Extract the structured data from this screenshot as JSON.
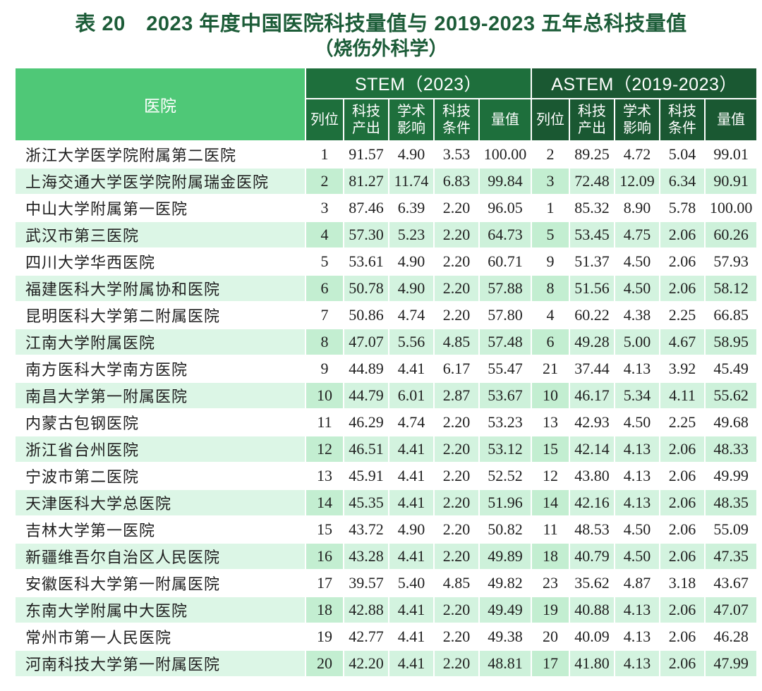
{
  "chart_data": {
    "type": "table",
    "title": "表 20　2023 年度中国医院科技量值与 2019-2023 五年总科技量值",
    "subtitle": "（烧伤外科学）",
    "hospital_header": "医院",
    "column_groups": [
      {
        "label": "STEM（2023）",
        "columns": [
          "列位",
          "科技\n产出",
          "学术\n影响",
          "科技\n条件",
          "量值"
        ]
      },
      {
        "label": "ASTEM（2019-2023）",
        "columns": [
          "列位",
          "科技\n产出",
          "学术\n影响",
          "科技\n条件",
          "量值"
        ]
      }
    ],
    "rows": [
      {
        "hospital": "浙江大学医学院附属第二医院",
        "stem": [
          "1",
          "91.57",
          "4.90",
          "3.53",
          "100.00"
        ],
        "astem": [
          "2",
          "89.25",
          "4.72",
          "5.04",
          "99.01"
        ]
      },
      {
        "hospital": "上海交通大学医学院附属瑞金医院",
        "stem": [
          "2",
          "81.27",
          "11.74",
          "6.83",
          "99.84"
        ],
        "astem": [
          "3",
          "72.48",
          "12.09",
          "6.34",
          "90.91"
        ]
      },
      {
        "hospital": "中山大学附属第一医院",
        "stem": [
          "3",
          "87.46",
          "6.39",
          "2.20",
          "96.05"
        ],
        "astem": [
          "1",
          "85.32",
          "8.90",
          "5.78",
          "100.00"
        ]
      },
      {
        "hospital": "武汉市第三医院",
        "stem": [
          "4",
          "57.30",
          "5.23",
          "2.20",
          "64.73"
        ],
        "astem": [
          "5",
          "53.45",
          "4.75",
          "2.06",
          "60.26"
        ]
      },
      {
        "hospital": "四川大学华西医院",
        "stem": [
          "5",
          "53.61",
          "4.90",
          "2.20",
          "60.71"
        ],
        "astem": [
          "9",
          "51.37",
          "4.50",
          "2.06",
          "57.93"
        ]
      },
      {
        "hospital": "福建医科大学附属协和医院",
        "stem": [
          "6",
          "50.78",
          "4.90",
          "2.20",
          "57.88"
        ],
        "astem": [
          "8",
          "51.56",
          "4.50",
          "2.06",
          "58.12"
        ]
      },
      {
        "hospital": "昆明医科大学第二附属医院",
        "stem": [
          "7",
          "50.86",
          "4.74",
          "2.20",
          "57.80"
        ],
        "astem": [
          "4",
          "60.22",
          "4.38",
          "2.25",
          "66.85"
        ]
      },
      {
        "hospital": "江南大学附属医院",
        "stem": [
          "8",
          "47.07",
          "5.56",
          "4.85",
          "57.48"
        ],
        "astem": [
          "6",
          "49.28",
          "5.00",
          "4.67",
          "58.95"
        ]
      },
      {
        "hospital": "南方医科大学南方医院",
        "stem": [
          "9",
          "44.89",
          "4.41",
          "6.17",
          "55.47"
        ],
        "astem": [
          "21",
          "37.44",
          "4.13",
          "3.92",
          "45.49"
        ]
      },
      {
        "hospital": "南昌大学第一附属医院",
        "stem": [
          "10",
          "44.79",
          "6.01",
          "2.87",
          "53.67"
        ],
        "astem": [
          "10",
          "46.17",
          "5.34",
          "4.11",
          "55.62"
        ]
      },
      {
        "hospital": "内蒙古包钢医院",
        "stem": [
          "11",
          "46.29",
          "4.74",
          "2.20",
          "53.23"
        ],
        "astem": [
          "13",
          "42.93",
          "4.50",
          "2.25",
          "49.68"
        ]
      },
      {
        "hospital": "浙江省台州医院",
        "stem": [
          "12",
          "46.51",
          "4.41",
          "2.20",
          "53.12"
        ],
        "astem": [
          "15",
          "42.14",
          "4.13",
          "2.06",
          "48.33"
        ]
      },
      {
        "hospital": "宁波市第二医院",
        "stem": [
          "13",
          "45.91",
          "4.41",
          "2.20",
          "52.52"
        ],
        "astem": [
          "12",
          "43.80",
          "4.13",
          "2.06",
          "49.99"
        ]
      },
      {
        "hospital": "天津医科大学总医院",
        "stem": [
          "14",
          "45.35",
          "4.41",
          "2.20",
          "51.96"
        ],
        "astem": [
          "14",
          "42.16",
          "4.13",
          "2.06",
          "48.35"
        ]
      },
      {
        "hospital": "吉林大学第一医院",
        "stem": [
          "15",
          "43.72",
          "4.90",
          "2.20",
          "50.82"
        ],
        "astem": [
          "11",
          "48.53",
          "4.50",
          "2.06",
          "55.09"
        ]
      },
      {
        "hospital": "新疆维吾尔自治区人民医院",
        "stem": [
          "16",
          "43.28",
          "4.41",
          "2.20",
          "49.89"
        ],
        "astem": [
          "18",
          "40.79",
          "4.50",
          "2.06",
          "47.35"
        ]
      },
      {
        "hospital": "安徽医科大学第一附属医院",
        "stem": [
          "17",
          "39.57",
          "5.40",
          "4.85",
          "49.82"
        ],
        "astem": [
          "23",
          "35.62",
          "4.87",
          "3.18",
          "43.67"
        ]
      },
      {
        "hospital": "东南大学附属中大医院",
        "stem": [
          "18",
          "42.88",
          "4.41",
          "2.20",
          "49.49"
        ],
        "astem": [
          "19",
          "40.88",
          "4.13",
          "2.06",
          "47.07"
        ]
      },
      {
        "hospital": "常州市第一人民医院",
        "stem": [
          "19",
          "42.77",
          "4.41",
          "2.20",
          "49.38"
        ],
        "astem": [
          "20",
          "40.09",
          "4.13",
          "2.06",
          "46.28"
        ]
      },
      {
        "hospital": "河南科技大学第一附属医院",
        "stem": [
          "20",
          "42.20",
          "4.41",
          "2.20",
          "48.81"
        ],
        "astem": [
          "17",
          "41.80",
          "4.13",
          "2.06",
          "47.99"
        ]
      }
    ]
  },
  "colors": {
    "title_text": "#1c5c38",
    "hospital_header_bg": "#4fc877",
    "stem_header_bg": "#1e6f3c",
    "astem_header_bg": "#1a5832",
    "row_green": "#d3f3df",
    "row_green_name": "#dcf6e6",
    "row_green_rank": "#c3eed1",
    "row_green_val": "#cdf1da",
    "row_white": "#ffffff"
  }
}
